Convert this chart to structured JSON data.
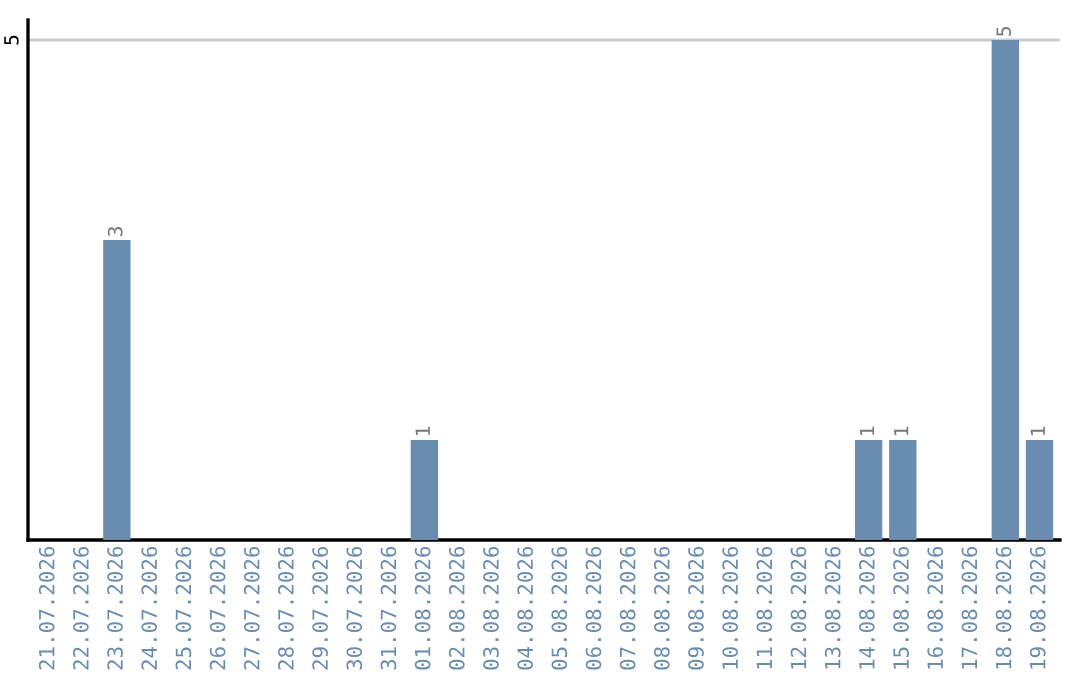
{
  "chart_data": {
    "type": "bar",
    "categories": [
      "21.07.2026",
      "22.07.2026",
      "23.07.2026",
      "24.07.2026",
      "25.07.2026",
      "26.07.2026",
      "27.07.2026",
      "28.07.2026",
      "29.07.2026",
      "30.07.2026",
      "31.07.2026",
      "01.08.2026",
      "02.08.2026",
      "03.08.2026",
      "04.08.2026",
      "05.08.2026",
      "06.08.2026",
      "07.08.2026",
      "08.08.2026",
      "09.08.2026",
      "10.08.2026",
      "11.08.2026",
      "12.08.2026",
      "13.08.2026",
      "14.08.2026",
      "15.08.2026",
      "16.08.2026",
      "17.08.2026",
      "18.08.2026",
      "19.08.2026"
    ],
    "values": [
      0,
      0,
      3,
      0,
      0,
      0,
      0,
      0,
      0,
      0,
      0,
      1,
      0,
      0,
      0,
      0,
      0,
      0,
      0,
      0,
      0,
      0,
      0,
      0,
      1,
      1,
      0,
      0,
      5,
      1
    ],
    "value_labels": [
      null,
      null,
      "3",
      null,
      null,
      null,
      null,
      null,
      null,
      null,
      null,
      "1",
      null,
      null,
      null,
      null,
      null,
      null,
      null,
      null,
      null,
      null,
      null,
      null,
      "1",
      "1",
      null,
      null,
      "5",
      "1"
    ],
    "color": "#6a8caf",
    "ylim": [
      0,
      5.2
    ],
    "yticks": [
      5
    ],
    "grid": "y"
  }
}
